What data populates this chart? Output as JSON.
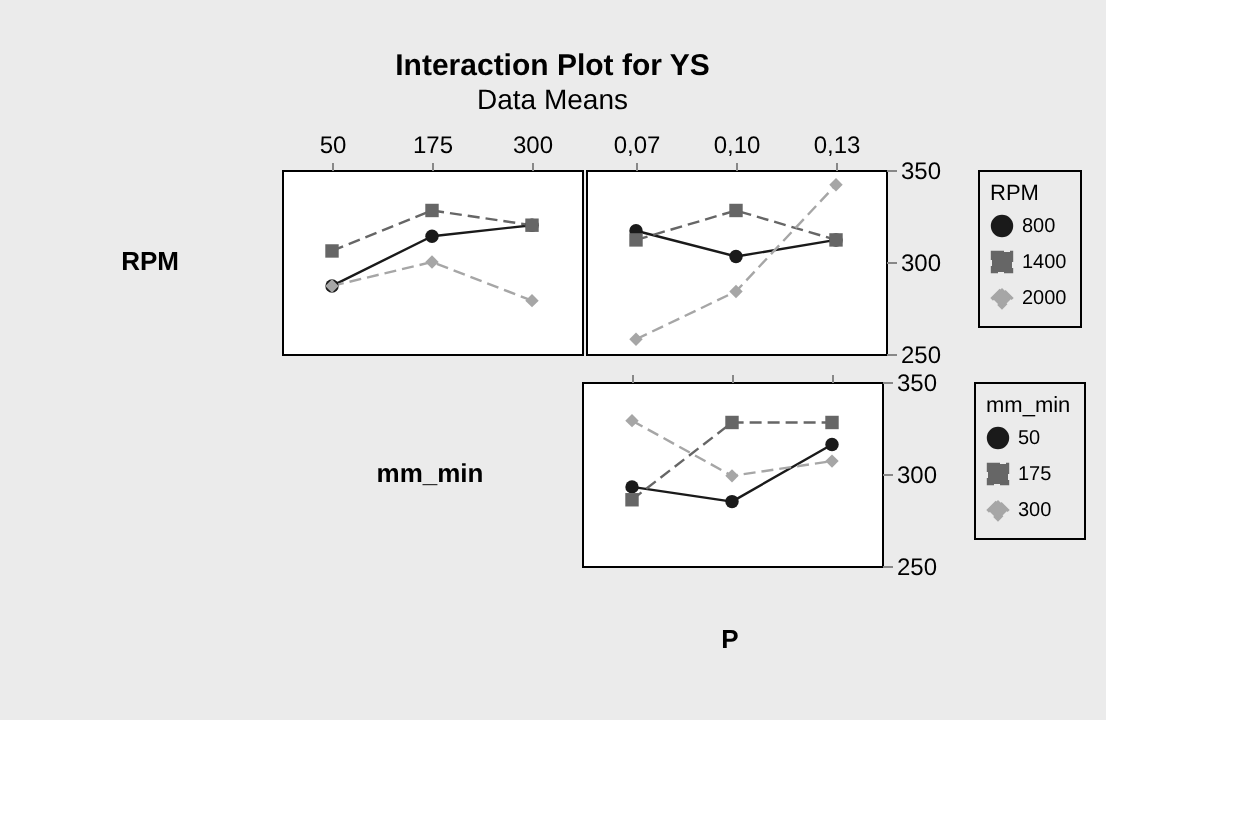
{
  "chart_data": [
    {
      "type": "line",
      "title": "Interaction Plot for YS",
      "subtitle": "Data Means",
      "ylabel": "RPM",
      "categories": [
        "50",
        "175",
        "300"
      ],
      "ylim": [
        250,
        350
      ],
      "yticks": [
        250,
        300,
        350
      ],
      "tick_labels": "x",
      "grid": false,
      "legend": "right",
      "series": [
        {
          "name": "800",
          "color": "#1a1a1a",
          "marker": "circle",
          "line_style": "solid",
          "values": [
            287,
            314,
            320
          ]
        },
        {
          "name": "1400",
          "color": "#666666",
          "marker": "square",
          "line_style": "dashed",
          "values": [
            306,
            328,
            320
          ]
        },
        {
          "name": "2000",
          "color": "#a6a6a6",
          "marker": "diamond",
          "line_style": "dashed",
          "values": [
            287,
            300,
            279
          ]
        }
      ]
    },
    {
      "type": "line",
      "categories": [
        "0,07",
        "0,10",
        "0,13"
      ],
      "ylim": [
        250,
        350
      ],
      "yticks": [
        250,
        300,
        350
      ],
      "grid": false,
      "legend": "right",
      "legend_title": "RPM",
      "series": [
        {
          "name": "800",
          "color": "#1a1a1a",
          "marker": "circle",
          "line_style": "solid",
          "values": [
            317,
            303,
            312
          ]
        },
        {
          "name": "1400",
          "color": "#666666",
          "marker": "square",
          "line_style": "dashed",
          "values": [
            312,
            328,
            312
          ]
        },
        {
          "name": "2000",
          "color": "#a6a6a6",
          "marker": "diamond",
          "line_style": "dashed",
          "values": [
            258,
            284,
            342
          ]
        }
      ]
    },
    {
      "type": "line",
      "ylabel": "mm_min",
      "xlabel": "P",
      "categories": [
        "0,07",
        "0,10",
        "0,13"
      ],
      "ylim": [
        250,
        350
      ],
      "yticks": [
        250,
        300,
        350
      ],
      "tick_labels": "y",
      "grid": false,
      "legend": "right",
      "legend_title": "mm_min",
      "series": [
        {
          "name": "50",
          "color": "#1a1a1a",
          "marker": "circle",
          "line_style": "solid",
          "values": [
            293,
            285,
            316
          ]
        },
        {
          "name": "175",
          "color": "#666666",
          "marker": "square",
          "line_style": "dashed",
          "values": [
            286,
            328,
            328
          ]
        },
        {
          "name": "300",
          "color": "#a6a6a6",
          "marker": "diamond",
          "line_style": "dashed",
          "values": [
            329,
            299,
            307
          ]
        }
      ]
    }
  ]
}
